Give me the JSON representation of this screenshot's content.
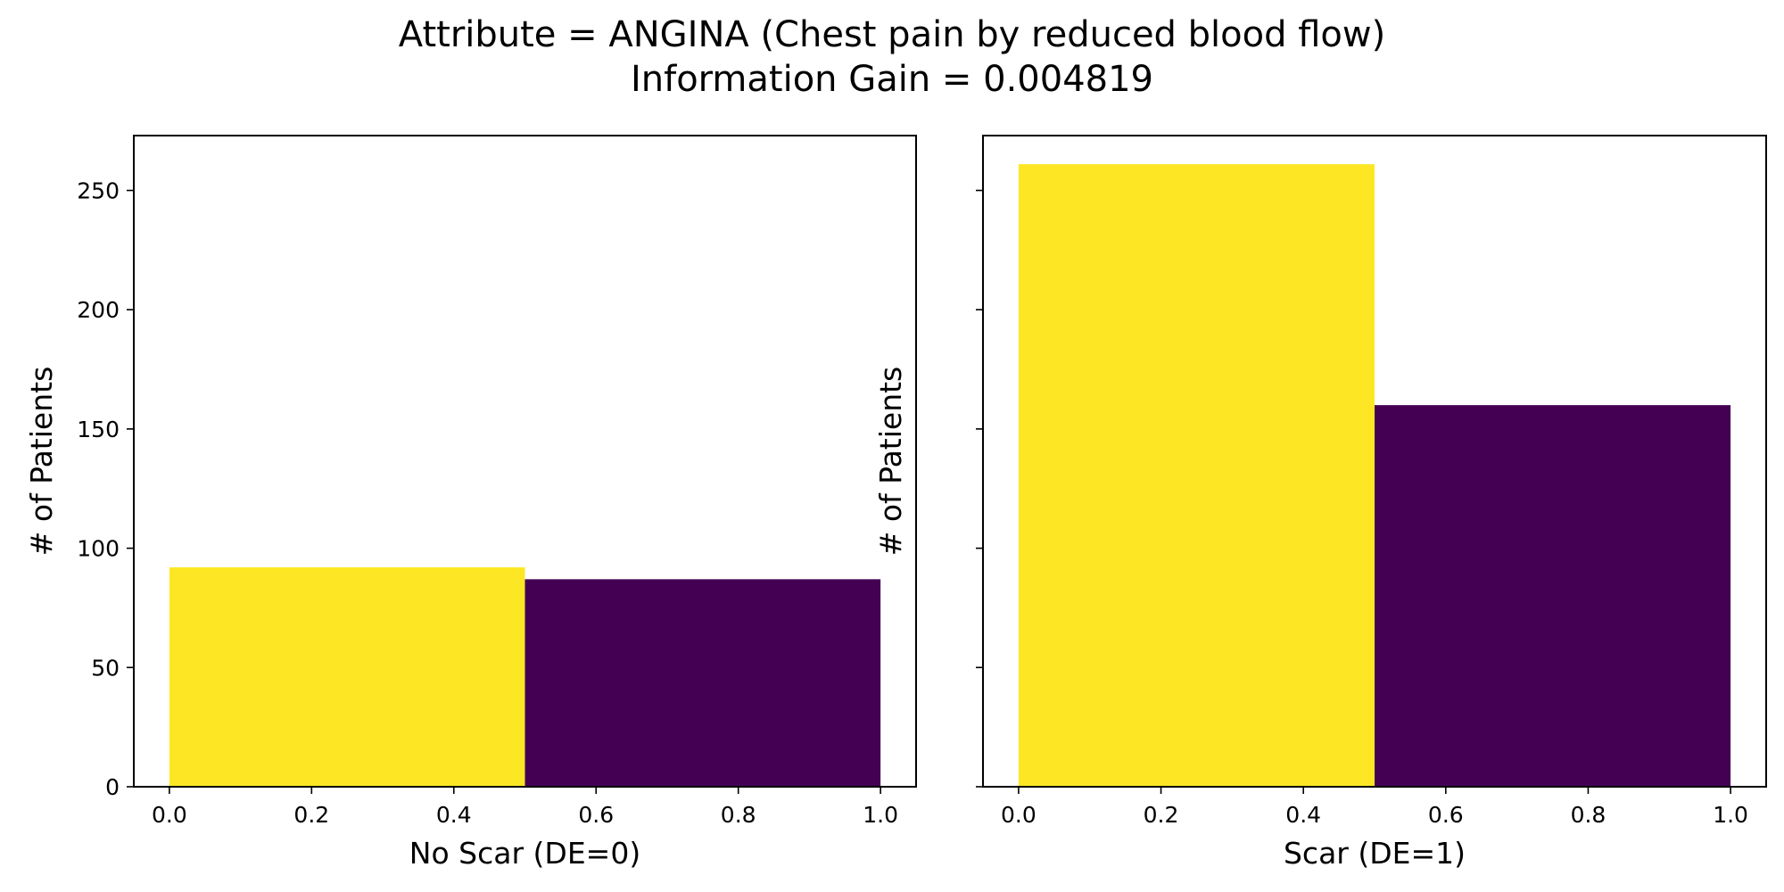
{
  "figure": {
    "title_line1": "Attribute = ANGINA (Chest pain by reduced blood flow)",
    "title_line2": "Information Gain = 0.004819"
  },
  "chart_data": [
    {
      "type": "bar",
      "xlabel": "No Scar (DE=0)",
      "ylabel": "# of Patients",
      "xlim": [
        -0.05,
        1.05
      ],
      "ylim": [
        0,
        273
      ],
      "xticks": [
        "0.0",
        "0.2",
        "0.4",
        "0.6",
        "0.8",
        "1.0"
      ],
      "yticks": [
        "0",
        "50",
        "100",
        "150",
        "200",
        "250"
      ],
      "show_y_tick_labels": true,
      "bins": [
        {
          "x0": 0.0,
          "x1": 0.5,
          "value": 92,
          "color": "#fde725"
        },
        {
          "x0": 0.5,
          "x1": 1.0,
          "value": 87,
          "color": "#440154"
        }
      ]
    },
    {
      "type": "bar",
      "xlabel": "Scar (DE=1)",
      "ylabel": "# of Patients",
      "xlim": [
        -0.05,
        1.05
      ],
      "ylim": [
        0,
        273
      ],
      "xticks": [
        "0.0",
        "0.2",
        "0.4",
        "0.6",
        "0.8",
        "1.0"
      ],
      "yticks": [
        "0",
        "50",
        "100",
        "150",
        "200",
        "250"
      ],
      "show_y_tick_labels": false,
      "bins": [
        {
          "x0": 0.0,
          "x1": 0.5,
          "value": 261,
          "color": "#fde725"
        },
        {
          "x0": 0.5,
          "x1": 1.0,
          "value": 160,
          "color": "#440154"
        }
      ]
    }
  ]
}
